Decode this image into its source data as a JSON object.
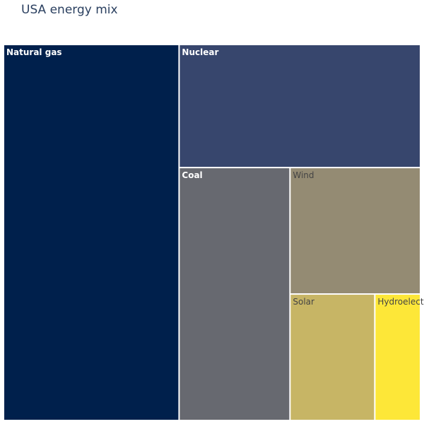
{
  "chart_data": {
    "type": "treemap",
    "title": "USA energy mix",
    "items": [
      {
        "label": "Natural gas",
        "value": 40,
        "color": "#00204c",
        "text_color": "#ffffff"
      },
      {
        "label": "Nuclear",
        "value": 18,
        "color": "#37466d",
        "text_color": "#ffffff"
      },
      {
        "label": "Coal",
        "value": 17,
        "color": "#676970",
        "text_color": "#ffffff"
      },
      {
        "label": "Wind",
        "value": 10,
        "color": "#948b73",
        "text_color": "#444444"
      },
      {
        "label": "Solar",
        "value": 6.5,
        "color": "#c7b565",
        "text_color": "#444444"
      },
      {
        "label": "Hydroelectric",
        "value": 3.5,
        "color": "#fde738",
        "text_color": "#444444"
      }
    ]
  }
}
